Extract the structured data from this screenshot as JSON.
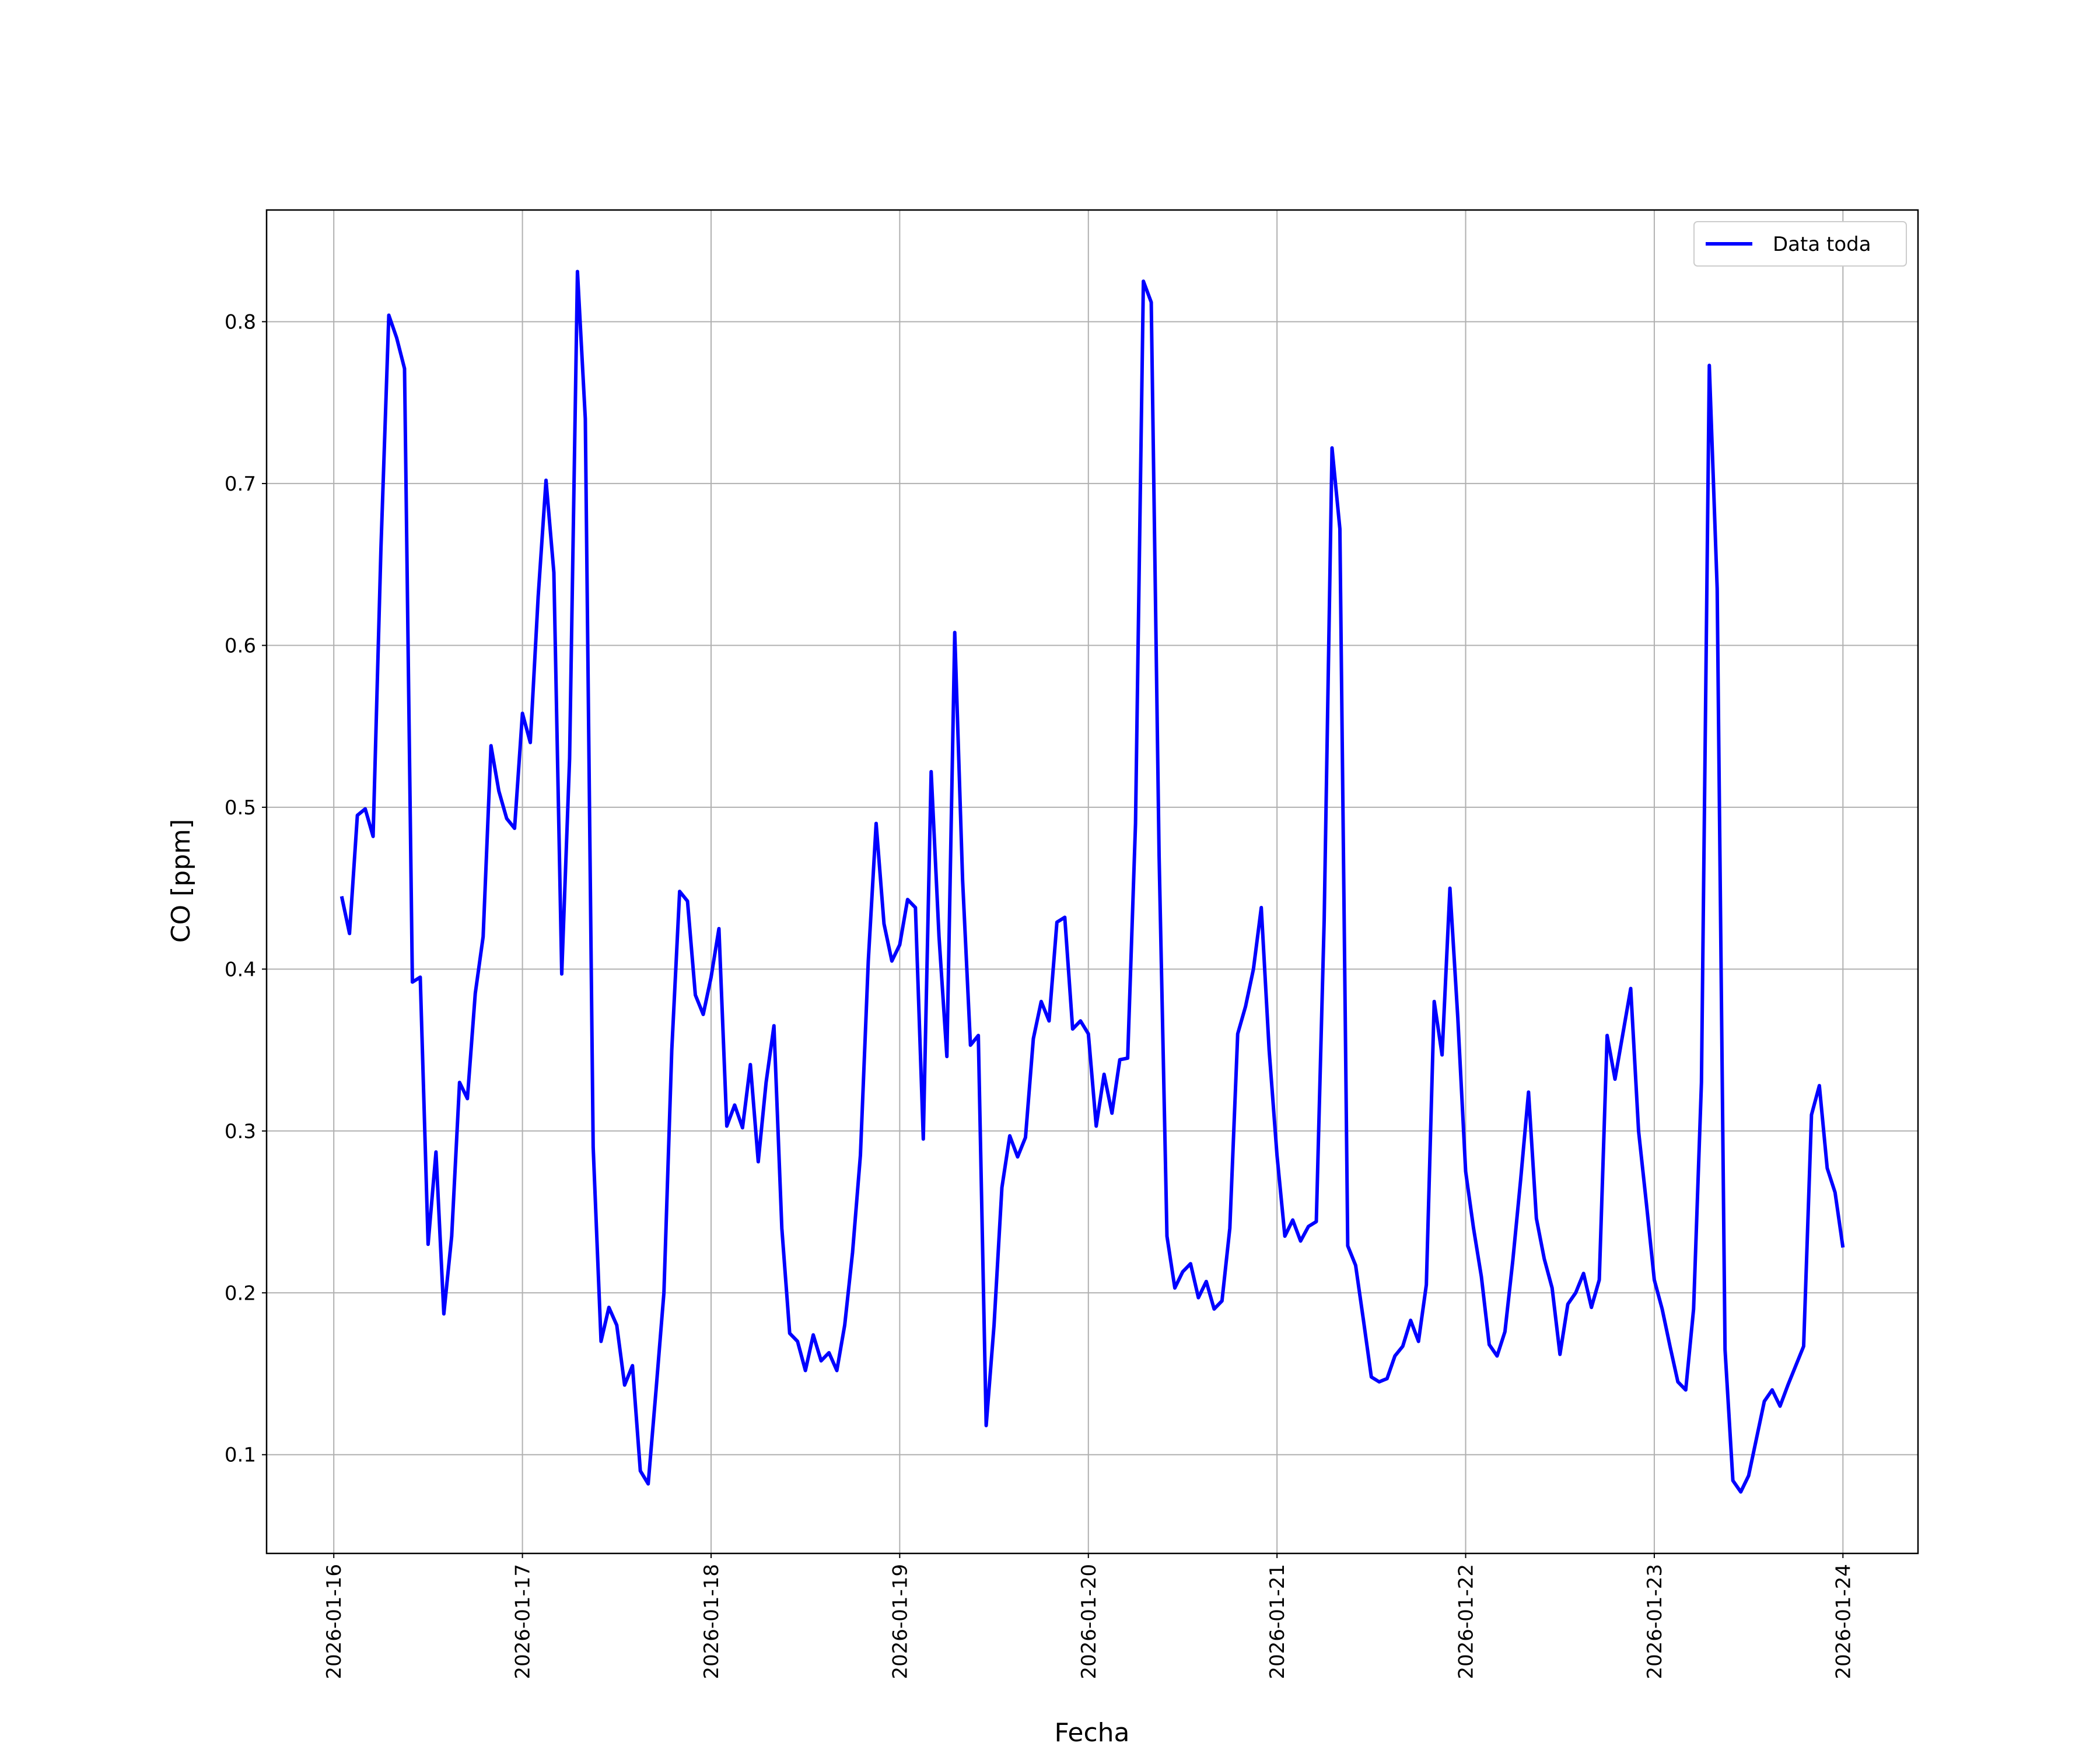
{
  "chart_data": {
    "type": "line",
    "xlabel": "Fecha",
    "ylabel": "CO [ppm]",
    "x": [
      "2026-01-16 01:00",
      "2026-01-16 02:00",
      "2026-01-16 03:00",
      "2026-01-16 04:00",
      "2026-01-16 05:00",
      "2026-01-16 06:00",
      "2026-01-16 07:00",
      "2026-01-16 08:00",
      "2026-01-16 09:00",
      "2026-01-16 10:00",
      "2026-01-16 11:00",
      "2026-01-16 12:00",
      "2026-01-16 13:00",
      "2026-01-16 14:00",
      "2026-01-16 15:00",
      "2026-01-16 16:00",
      "2026-01-16 17:00",
      "2026-01-16 18:00",
      "2026-01-16 19:00",
      "2026-01-16 20:00",
      "2026-01-16 21:00",
      "2026-01-16 22:00",
      "2026-01-16 23:00",
      "2026-01-17 00:00",
      "2026-01-17 01:00",
      "2026-01-17 02:00",
      "2026-01-17 03:00",
      "2026-01-17 04:00",
      "2026-01-17 05:00",
      "2026-01-17 06:00",
      "2026-01-17 07:00",
      "2026-01-17 08:00",
      "2026-01-17 09:00",
      "2026-01-17 10:00",
      "2026-01-17 11:00",
      "2026-01-17 12:00",
      "2026-01-17 13:00",
      "2026-01-17 14:00",
      "2026-01-17 15:00",
      "2026-01-17 16:00",
      "2026-01-17 17:00",
      "2026-01-17 18:00",
      "2026-01-17 19:00",
      "2026-01-17 20:00",
      "2026-01-17 21:00",
      "2026-01-17 22:00",
      "2026-01-17 23:00",
      "2026-01-18 00:00",
      "2026-01-18 01:00",
      "2026-01-18 02:00",
      "2026-01-18 03:00",
      "2026-01-18 04:00",
      "2026-01-18 05:00",
      "2026-01-18 06:00",
      "2026-01-18 07:00",
      "2026-01-18 08:00",
      "2026-01-18 09:00",
      "2026-01-18 10:00",
      "2026-01-18 11:00",
      "2026-01-18 12:00",
      "2026-01-18 13:00",
      "2026-01-18 14:00",
      "2026-01-18 15:00",
      "2026-01-18 16:00",
      "2026-01-18 17:00",
      "2026-01-18 18:00",
      "2026-01-18 19:00",
      "2026-01-18 20:00",
      "2026-01-18 21:00",
      "2026-01-18 22:00",
      "2026-01-18 23:00",
      "2026-01-19 00:00",
      "2026-01-19 01:00",
      "2026-01-19 02:00",
      "2026-01-19 03:00",
      "2026-01-19 04:00",
      "2026-01-19 05:00",
      "2026-01-19 06:00",
      "2026-01-19 07:00",
      "2026-01-19 08:00",
      "2026-01-19 09:00",
      "2026-01-19 10:00",
      "2026-01-19 11:00",
      "2026-01-19 12:00",
      "2026-01-19 13:00",
      "2026-01-19 14:00",
      "2026-01-19 15:00",
      "2026-01-19 16:00",
      "2026-01-19 17:00",
      "2026-01-19 18:00",
      "2026-01-19 19:00",
      "2026-01-19 20:00",
      "2026-01-19 21:00",
      "2026-01-19 22:00",
      "2026-01-19 23:00",
      "2026-01-20 00:00",
      "2026-01-20 01:00",
      "2026-01-20 02:00",
      "2026-01-20 03:00",
      "2026-01-20 04:00",
      "2026-01-20 05:00",
      "2026-01-20 06:00",
      "2026-01-20 07:00",
      "2026-01-20 08:00",
      "2026-01-20 09:00",
      "2026-01-20 10:00",
      "2026-01-20 11:00",
      "2026-01-20 12:00",
      "2026-01-20 13:00",
      "2026-01-20 14:00",
      "2026-01-20 15:00",
      "2026-01-20 16:00",
      "2026-01-20 17:00",
      "2026-01-20 18:00",
      "2026-01-20 19:00",
      "2026-01-20 20:00",
      "2026-01-20 21:00",
      "2026-01-20 22:00",
      "2026-01-20 23:00",
      "2026-01-21 00:00",
      "2026-01-21 01:00",
      "2026-01-21 02:00",
      "2026-01-21 03:00",
      "2026-01-21 04:00",
      "2026-01-21 05:00",
      "2026-01-21 06:00",
      "2026-01-21 07:00",
      "2026-01-21 08:00",
      "2026-01-21 09:00",
      "2026-01-21 10:00",
      "2026-01-21 11:00",
      "2026-01-21 12:00",
      "2026-01-21 13:00",
      "2026-01-21 14:00",
      "2026-01-21 15:00",
      "2026-01-21 16:00",
      "2026-01-21 17:00",
      "2026-01-21 18:00",
      "2026-01-21 19:00",
      "2026-01-21 20:00",
      "2026-01-21 21:00",
      "2026-01-21 22:00",
      "2026-01-21 23:00",
      "2026-01-22 00:00",
      "2026-01-22 01:00",
      "2026-01-22 02:00",
      "2026-01-22 03:00",
      "2026-01-22 04:00",
      "2026-01-22 05:00",
      "2026-01-22 06:00",
      "2026-01-22 07:00",
      "2026-01-22 08:00",
      "2026-01-22 09:00",
      "2026-01-22 10:00",
      "2026-01-22 11:00",
      "2026-01-22 12:00",
      "2026-01-22 13:00",
      "2026-01-22 14:00",
      "2026-01-22 15:00",
      "2026-01-22 16:00",
      "2026-01-22 17:00",
      "2026-01-22 18:00",
      "2026-01-22 19:00",
      "2026-01-22 20:00",
      "2026-01-22 21:00",
      "2026-01-22 22:00",
      "2026-01-22 23:00",
      "2026-01-23 00:00",
      "2026-01-23 01:00",
      "2026-01-23 02:00",
      "2026-01-23 03:00",
      "2026-01-23 04:00",
      "2026-01-23 05:00",
      "2026-01-23 06:00",
      "2026-01-23 07:00",
      "2026-01-23 08:00",
      "2026-01-23 09:00",
      "2026-01-23 10:00",
      "2026-01-23 11:00",
      "2026-01-23 12:00",
      "2026-01-23 13:00",
      "2026-01-23 14:00",
      "2026-01-23 15:00",
      "2026-01-23 16:00",
      "2026-01-23 17:00",
      "2026-01-23 18:00",
      "2026-01-23 19:00",
      "2026-01-23 20:00",
      "2026-01-23 21:00",
      "2026-01-23 22:00",
      "2026-01-23 23:00",
      "2026-01-24 00:00"
    ],
    "series": [
      {
        "name": "Data toda",
        "color": "#0000ff",
        "values": [
          0.445,
          0.422,
          0.495,
          0.499,
          0.482,
          0.66,
          0.804,
          0.79,
          0.771,
          0.392,
          0.395,
          0.23,
          0.287,
          0.187,
          0.235,
          0.33,
          0.32,
          0.385,
          0.42,
          0.538,
          0.51,
          0.493,
          0.487,
          0.558,
          0.54,
          0.63,
          0.702,
          0.645,
          0.397,
          0.53,
          0.831,
          0.74,
          0.29,
          0.17,
          0.191,
          0.18,
          0.143,
          0.155,
          0.09,
          0.082,
          0.14,
          0.2,
          0.35,
          0.448,
          0.442,
          0.384,
          0.372,
          0.395,
          0.425,
          0.303,
          0.316,
          0.302,
          0.341,
          0.281,
          0.33,
          0.365,
          0.24,
          0.175,
          0.17,
          0.152,
          0.174,
          0.158,
          0.163,
          0.152,
          0.18,
          0.225,
          0.285,
          0.405,
          0.49,
          0.428,
          0.405,
          0.415,
          0.443,
          0.438,
          0.295,
          0.522,
          0.42,
          0.346,
          0.608,
          0.455,
          0.353,
          0.359,
          0.118,
          0.18,
          0.265,
          0.297,
          0.284,
          0.296,
          0.357,
          0.38,
          0.368,
          0.429,
          0.432,
          0.363,
          0.368,
          0.36,
          0.303,
          0.335,
          0.311,
          0.344,
          0.345,
          0.49,
          0.825,
          0.812,
          0.47,
          0.235,
          0.203,
          0.213,
          0.218,
          0.197,
          0.207,
          0.19,
          0.195,
          0.24,
          0.36,
          0.377,
          0.4,
          0.438,
          0.35,
          0.285,
          0.235,
          0.245,
          0.232,
          0.241,
          0.244,
          0.43,
          0.722,
          0.672,
          0.229,
          0.217,
          0.183,
          0.148,
          0.145,
          0.147,
          0.161,
          0.167,
          0.183,
          0.17,
          0.205,
          0.38,
          0.347,
          0.45,
          0.37,
          0.275,
          0.24,
          0.21,
          0.168,
          0.161,
          0.176,
          0.22,
          0.27,
          0.324,
          0.246,
          0.221,
          0.203,
          0.162,
          0.193,
          0.2,
          0.212,
          0.191,
          0.208,
          0.359,
          0.332,
          0.36,
          0.388,
          0.3,
          0.255,
          0.208,
          0.19,
          0.167,
          0.145,
          0.14,
          0.19,
          0.33,
          0.773,
          0.635,
          0.165,
          0.084,
          0.077,
          0.087,
          0.11,
          0.133,
          0.14,
          0.13,
          0.143,
          0.155,
          0.167,
          0.31,
          0.328,
          0.277,
          0.262,
          0.228
        ]
      }
    ],
    "xlim": [
      "2026-01-15 15:27",
      "2026-01-24 09:33"
    ],
    "xticks": [
      "2026-01-16",
      "2026-01-17",
      "2026-01-18",
      "2026-01-19",
      "2026-01-20",
      "2026-01-21",
      "2026-01-22",
      "2026-01-23",
      "2026-01-24"
    ],
    "ylim": [
      0.039,
      0.869
    ],
    "yticks": [
      0.1,
      0.2,
      0.3,
      0.4,
      0.5,
      0.6,
      0.7,
      0.8
    ],
    "grid": true,
    "legend": "upper right"
  }
}
